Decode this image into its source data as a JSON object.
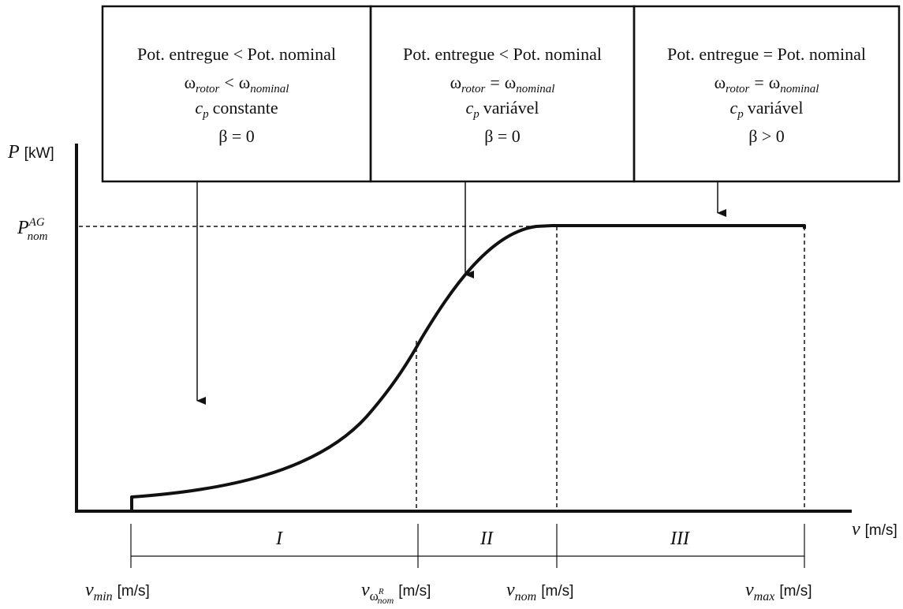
{
  "boxes": [
    {
      "line1": "Pot. entregue < Pot. nominal",
      "omega_left": "ω",
      "omega_left_sub": "rotor",
      "relation": "<",
      "omega_right": "ω",
      "omega_right_sub": "nominal",
      "cp_symbol": "c",
      "cp_sub": "p",
      "cp_text": "constante",
      "beta": "β = 0"
    },
    {
      "line1": "Pot. entregue < Pot. nominal",
      "omega_left": "ω",
      "omega_left_sub": "rotor",
      "relation": "=",
      "omega_right": "ω",
      "omega_right_sub": "nominal",
      "cp_symbol": "c",
      "cp_sub": "p",
      "cp_text": "variável",
      "beta": "β = 0"
    },
    {
      "line1": "Pot. entregue = Pot. nominal",
      "omega_left": "ω",
      "omega_left_sub": "rotor",
      "relation": "=",
      "omega_right": "ω",
      "omega_right_sub": "nominal",
      "cp_symbol": "c",
      "cp_sub": "p",
      "cp_text": "variável",
      "beta": "β > 0"
    }
  ],
  "y_axis": {
    "symbol": "P",
    "unit": "[kW]"
  },
  "x_axis": {
    "symbol": "v",
    "unit": "[m/s]"
  },
  "pnom": {
    "symbol": "P",
    "sup": "AG",
    "sub": "nom"
  },
  "regions": [
    "I",
    "II",
    "III"
  ],
  "speed_labels": [
    {
      "symbol": "v",
      "sub": "min",
      "unit": "[m/s]"
    },
    {
      "symbol": "v",
      "sub": "ω",
      "subsup": "R",
      "subsub": "nom",
      "unit": "[m/s]"
    },
    {
      "symbol": "v",
      "sub": "nom",
      "unit": "[m/s]"
    },
    {
      "symbol": "v",
      "sub": "max",
      "unit": "[m/s]"
    }
  ]
}
